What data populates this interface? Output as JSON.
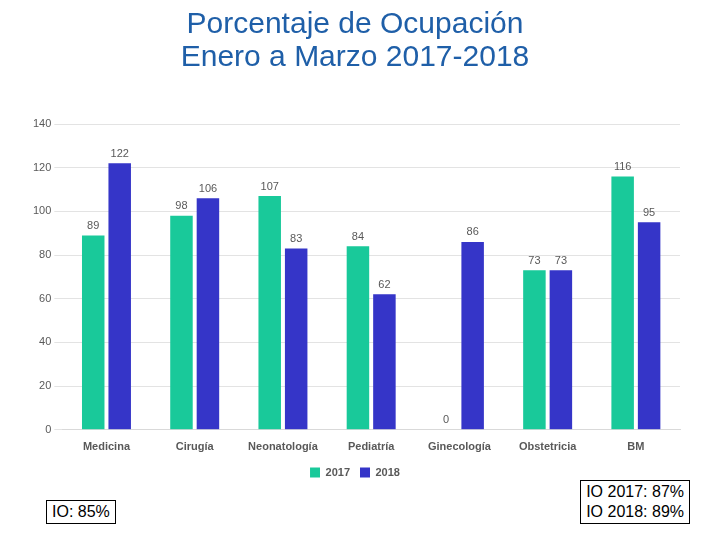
{
  "chart_data": {
    "type": "bar",
    "title": [
      "Porcentaje de Ocupación",
      "Enero a Marzo 2017-2018"
    ],
    "categories": [
      "Medicina",
      "Cirugía",
      "Neonatología",
      "Pediatría",
      "Ginecología",
      "Obstetricia",
      "BM"
    ],
    "series": [
      {
        "name": "2017",
        "color": "#19c99a",
        "values": [
          89,
          98,
          107,
          84,
          0,
          73,
          116
        ]
      },
      {
        "name": "2018",
        "color": "#3535c8",
        "values": [
          122,
          106,
          83,
          62,
          86,
          73,
          95
        ]
      }
    ],
    "ylim": [
      0,
      140
    ],
    "yticks": [
      0,
      20,
      40,
      60,
      80,
      100,
      120,
      140
    ],
    "grid": true,
    "legend": "bottom",
    "data_labels": true,
    "annotations": [
      [
        "IO: 85%"
      ],
      [
        "IO 2017: 87%",
        "IO 2018: 89%"
      ]
    ]
  }
}
